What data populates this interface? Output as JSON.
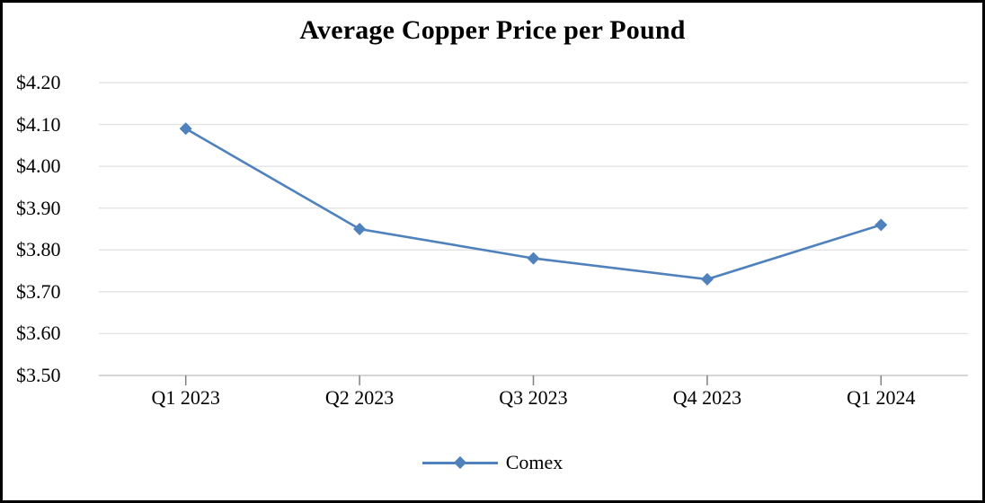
{
  "chart_data": {
    "type": "line",
    "title": "Average Copper Price per Pound",
    "categories": [
      "Q1 2023",
      "Q2 2023",
      "Q3 2023",
      "Q4 2023",
      "Q1 2024"
    ],
    "series": [
      {
        "name": "Comex",
        "values": [
          4.09,
          3.85,
          3.78,
          3.73,
          3.86
        ]
      }
    ],
    "y_ticks": [
      4.2,
      4.1,
      4.0,
      3.9,
      3.8,
      3.7,
      3.6,
      3.5
    ],
    "y_tick_labels": [
      "$4.20",
      "$4.10",
      "$4.00",
      "$3.90",
      "$3.80",
      "$3.70",
      "$3.60",
      "$3.50"
    ],
    "ylim": [
      3.5,
      4.2
    ],
    "y_tick_step": 0.1,
    "xlabel": "",
    "ylabel": "",
    "grid": true,
    "marker": "diamond",
    "legend_position": "bottom",
    "colors": {
      "series": "#4F81BD",
      "gridline": "#E3E3E3",
      "axis_line": "#C9C9C9",
      "tick_mark": "#7F7F7F",
      "text": "#000000",
      "background": "#FFFFFF",
      "border": "#000000"
    }
  }
}
